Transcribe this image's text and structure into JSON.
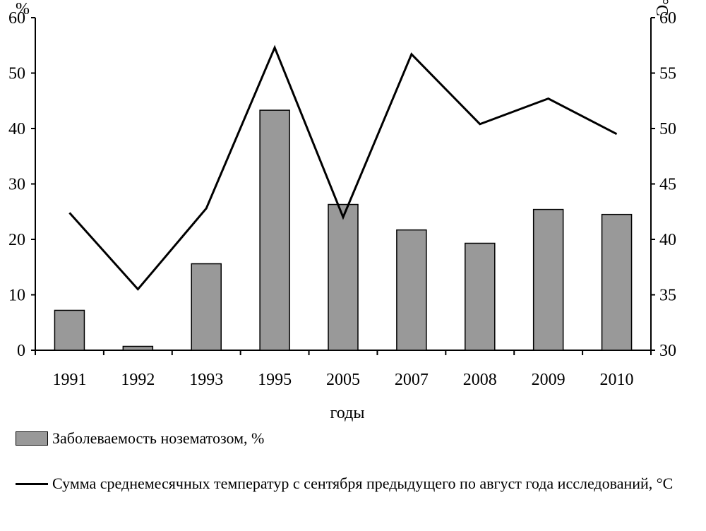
{
  "chart_data": {
    "type": "bar+line",
    "categories": [
      "1991",
      "1992",
      "1993",
      "1995",
      "2005",
      "2007",
      "2008",
      "2009",
      "2010"
    ],
    "xlabel": "годы",
    "left_axis": {
      "unit": "%",
      "ylim": [
        0,
        60
      ],
      "ticks": [
        0,
        10,
        20,
        30,
        40,
        50,
        60
      ]
    },
    "right_axis": {
      "unit": "°C",
      "ylim": [
        30,
        60
      ],
      "ticks": [
        30,
        35,
        40,
        45,
        50,
        55,
        60
      ]
    },
    "grid": false,
    "legend_position": "bottom",
    "series": [
      {
        "name": "Заболеваемость нозематозом, %",
        "kind": "bar",
        "axis": "left",
        "color": "#999999",
        "values": [
          7.2,
          0.7,
          15.6,
          43.3,
          26.3,
          21.7,
          19.3,
          25.4,
          24.5
        ]
      },
      {
        "name": "Сумма среднемесячных температур с сентября предыдущего по август года исследований, °С",
        "kind": "line",
        "axis": "right",
        "color": "#000000",
        "values": [
          42.4,
          35.5,
          42.8,
          57.3,
          42.0,
          56.7,
          50.4,
          52.7,
          49.5
        ]
      }
    ]
  }
}
